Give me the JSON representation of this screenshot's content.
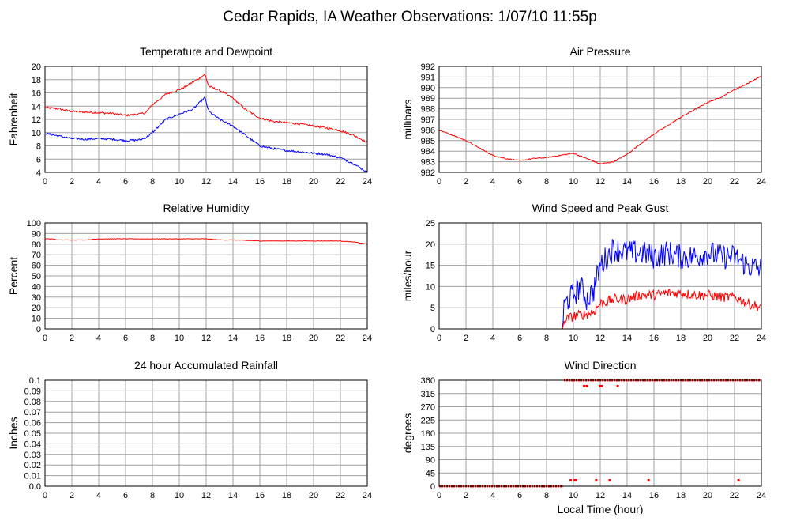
{
  "page": {
    "title": "Cedar Rapids, IA Weather Observations: 1/07/10 11:55p",
    "xlabel": "Local Time (hour)"
  },
  "colors": {
    "primary": "#ff0000",
    "secondary": "#0000ff",
    "grid": "#a0a0a0"
  },
  "chart_data": [
    {
      "id": "temp",
      "type": "line",
      "title": "Temperature and Dewpoint",
      "ylabel": "Fahrenheit",
      "xlim": [
        0,
        24
      ],
      "ylim": [
        4,
        20
      ],
      "xticks": [
        0,
        2,
        4,
        6,
        8,
        10,
        12,
        14,
        16,
        18,
        20,
        22,
        24
      ],
      "yticks": [
        4,
        6,
        8,
        10,
        12,
        14,
        16,
        18,
        20
      ],
      "grid": true,
      "series": [
        {
          "color": "#ff0000",
          "noise": 0.15,
          "x": [
            0,
            1,
            2,
            3,
            4,
            5,
            6,
            7,
            7.5,
            8,
            9,
            10,
            10.5,
            11,
            11.5,
            11.9,
            12.2,
            13,
            14,
            15,
            16,
            17,
            18,
            19,
            20,
            21,
            22,
            23,
            24
          ],
          "values": [
            13.8,
            13.6,
            13.2,
            13.1,
            13.0,
            12.9,
            12.6,
            12.8,
            13.0,
            14.2,
            15.8,
            16.5,
            17.0,
            17.6,
            18.2,
            18.8,
            17.0,
            16.4,
            15.2,
            13.4,
            12.2,
            11.7,
            11.5,
            11.3,
            11.0,
            10.7,
            10.3,
            9.6,
            8.5
          ]
        },
        {
          "color": "#0000ff",
          "noise": 0.15,
          "x": [
            0,
            1,
            2,
            3,
            4,
            5,
            6,
            7,
            7.5,
            8,
            9,
            10,
            11,
            11.5,
            11.9,
            12.2,
            13,
            14,
            15,
            16,
            17,
            18,
            19,
            20,
            21,
            22,
            23,
            24
          ],
          "values": [
            9.9,
            9.5,
            9.1,
            9.0,
            9.1,
            9.0,
            8.8,
            8.9,
            9.2,
            10.0,
            12.0,
            12.8,
            13.5,
            14.5,
            15.3,
            13.2,
            12.0,
            11.0,
            9.5,
            8.0,
            7.6,
            7.3,
            7.1,
            6.9,
            6.7,
            6.2,
            5.3,
            4.0
          ]
        }
      ]
    },
    {
      "id": "pres",
      "type": "line",
      "title": "Air Pressure",
      "ylabel": "millibars",
      "xlim": [
        0,
        24
      ],
      "ylim": [
        982,
        992
      ],
      "xticks": [
        0,
        2,
        4,
        6,
        8,
        10,
        12,
        14,
        16,
        18,
        20,
        22,
        24
      ],
      "yticks": [
        982,
        983,
        984,
        985,
        986,
        987,
        988,
        989,
        990,
        991,
        992
      ],
      "grid": true,
      "series": [
        {
          "color": "#ff0000",
          "noise": 0.05,
          "x": [
            0,
            1,
            2,
            3,
            4,
            5,
            6,
            7,
            8,
            9,
            10,
            11,
            12,
            13,
            14,
            15,
            16,
            17,
            18,
            19,
            20,
            21,
            22,
            23,
            24
          ],
          "values": [
            986.0,
            985.5,
            985.0,
            984.3,
            983.6,
            983.3,
            983.1,
            983.3,
            983.4,
            983.6,
            983.8,
            983.3,
            982.8,
            983.0,
            983.7,
            984.7,
            985.6,
            986.4,
            987.2,
            987.9,
            988.6,
            989.1,
            989.8,
            990.4,
            991.1
          ]
        }
      ]
    },
    {
      "id": "rh",
      "type": "line",
      "title": "Relative Humidity",
      "ylabel": "Percent",
      "xlim": [
        0,
        24
      ],
      "ylim": [
        0,
        100
      ],
      "xticks": [
        0,
        2,
        4,
        6,
        8,
        10,
        12,
        14,
        16,
        18,
        20,
        22,
        24
      ],
      "yticks": [
        0,
        10,
        20,
        30,
        40,
        50,
        60,
        70,
        80,
        90,
        100
      ],
      "grid": true,
      "series": [
        {
          "color": "#ff0000",
          "noise": 0.25,
          "x": [
            0,
            0.5,
            1,
            3,
            4,
            6,
            8,
            10,
            11,
            12,
            13,
            14,
            16,
            18,
            20,
            22,
            23,
            23.5,
            24
          ],
          "values": [
            85,
            85,
            84,
            84,
            85,
            85,
            85,
            85,
            85,
            85,
            84,
            84,
            83,
            83,
            83,
            83,
            82,
            81,
            80
          ]
        }
      ]
    },
    {
      "id": "wind",
      "type": "line",
      "title": "Wind Speed and Peak Gust",
      "ylabel": "miles/hour",
      "xlim": [
        0,
        24
      ],
      "ylim": [
        0,
        25
      ],
      "xticks": [
        0,
        2,
        4,
        6,
        8,
        10,
        12,
        14,
        16,
        18,
        20,
        22,
        24
      ],
      "yticks": [
        0,
        5,
        10,
        15,
        20,
        25
      ],
      "grid": true,
      "series": [
        {
          "color": "#0000ff",
          "noise": 3.0,
          "noiseFrom": 9.3,
          "x": [
            0,
            9.2,
            9.3,
            9.6,
            10,
            10.5,
            11,
            11.5,
            12,
            12.5,
            13,
            14,
            15,
            16,
            17,
            18,
            19,
            20,
            21,
            22,
            23,
            24
          ],
          "values": [
            0,
            0,
            5,
            7,
            8,
            10,
            7,
            9,
            15,
            17,
            19,
            18,
            18,
            17,
            18,
            17,
            17,
            18,
            17,
            17,
            15,
            14
          ]
        },
        {
          "color": "#ff0000",
          "noise": 1.2,
          "noiseFrom": 9.3,
          "x": [
            0,
            9.2,
            9.3,
            10,
            11,
            11.5,
            12,
            13,
            14,
            15,
            16,
            17,
            18,
            19,
            20,
            21,
            22,
            23,
            24
          ],
          "values": [
            0,
            0,
            2,
            3,
            3.5,
            4,
            6,
            7,
            7,
            8,
            8,
            8.5,
            8.5,
            8,
            8,
            7.5,
            7.5,
            6,
            5
          ]
        }
      ]
    },
    {
      "id": "rain",
      "type": "line",
      "title": "24 hour Accumulated Rainfall",
      "ylabel": "Inches",
      "xlim": [
        0,
        24
      ],
      "ylim": [
        0,
        0.1
      ],
      "xticks": [
        0,
        2,
        4,
        6,
        8,
        10,
        12,
        14,
        16,
        18,
        20,
        22,
        24
      ],
      "yticks": [
        "0.0",
        "0.01",
        "0.02",
        "0.03",
        "0.04",
        "0.05",
        "0.06",
        "0.07",
        "0.08",
        "0.09",
        "0.1"
      ],
      "grid": true,
      "series": [
        {
          "color": "#ff0000",
          "noise": 0,
          "x": [
            0,
            24
          ],
          "values": [
            0,
            0
          ]
        }
      ]
    },
    {
      "id": "dir",
      "type": "scatter",
      "title": "Wind Direction",
      "ylabel": "degrees",
      "xlim": [
        0,
        24
      ],
      "ylim": [
        0,
        360
      ],
      "xticks": [
        0,
        2,
        4,
        6,
        8,
        10,
        12,
        14,
        16,
        18,
        20,
        22,
        24
      ],
      "yticks": [
        0,
        45,
        90,
        135,
        180,
        225,
        270,
        315,
        360
      ],
      "grid": true,
      "series": [
        {
          "color": "#ff0000",
          "runs": [
            [
              0,
              9.2,
              0
            ],
            [
              9.3,
              24,
              360
            ]
          ],
          "points": [
            [
              9.8,
              20
            ],
            [
              10.1,
              20
            ],
            [
              10.2,
              20
            ],
            [
              11.7,
              20
            ],
            [
              12.7,
              20
            ],
            [
              15.6,
              20
            ],
            [
              22.3,
              20
            ],
            [
              10.8,
              340
            ],
            [
              11.0,
              340
            ],
            [
              12.0,
              340
            ],
            [
              12.1,
              340
            ],
            [
              13.3,
              340
            ]
          ]
        }
      ]
    }
  ]
}
